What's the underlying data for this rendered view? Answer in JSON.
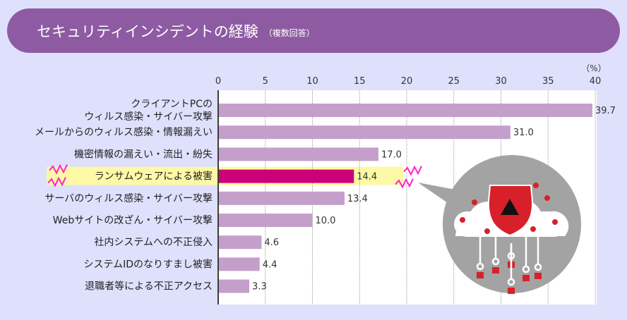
{
  "title": "セキュリティインシデントの経験",
  "subtitle": "（複数回答）",
  "chart_data": {
    "type": "bar",
    "orientation": "horizontal",
    "unit_label": "（%）",
    "xlim": [
      0,
      40
    ],
    "ticks": [
      0,
      5,
      10,
      15,
      20,
      25,
      30,
      35,
      40
    ],
    "grid": true,
    "categories": [
      "クライアントPCの\nウィルス感染・サイバー攻撃",
      "メールからのウィルス感染・情報漏えい",
      "機密情報の漏えい・流出・紛失",
      "ランサムウェアによる被害",
      "サーバのウィルス感染・サイバー攻撃",
      "Webサイトの改ざん・サイバー攻撃",
      "社内システムへの不正侵入",
      "システムIDのなりすまし被害",
      "退職者等による不正アクセス"
    ],
    "values": [
      39.7,
      31.0,
      17.0,
      14.4,
      13.4,
      10.0,
      4.6,
      4.4,
      3.3
    ],
    "labels": [
      "39.7",
      "31.0",
      "17.0",
      "14.4",
      "13.4",
      "10.0",
      "4.6",
      "4.4",
      "3.3"
    ],
    "highlight_index": 3,
    "colors": {
      "bar": "#c49fcb",
      "highlight_bar": "#cc0077",
      "highlight_band": "#fdf9a6",
      "zigzag": "#ff22cc"
    }
  }
}
